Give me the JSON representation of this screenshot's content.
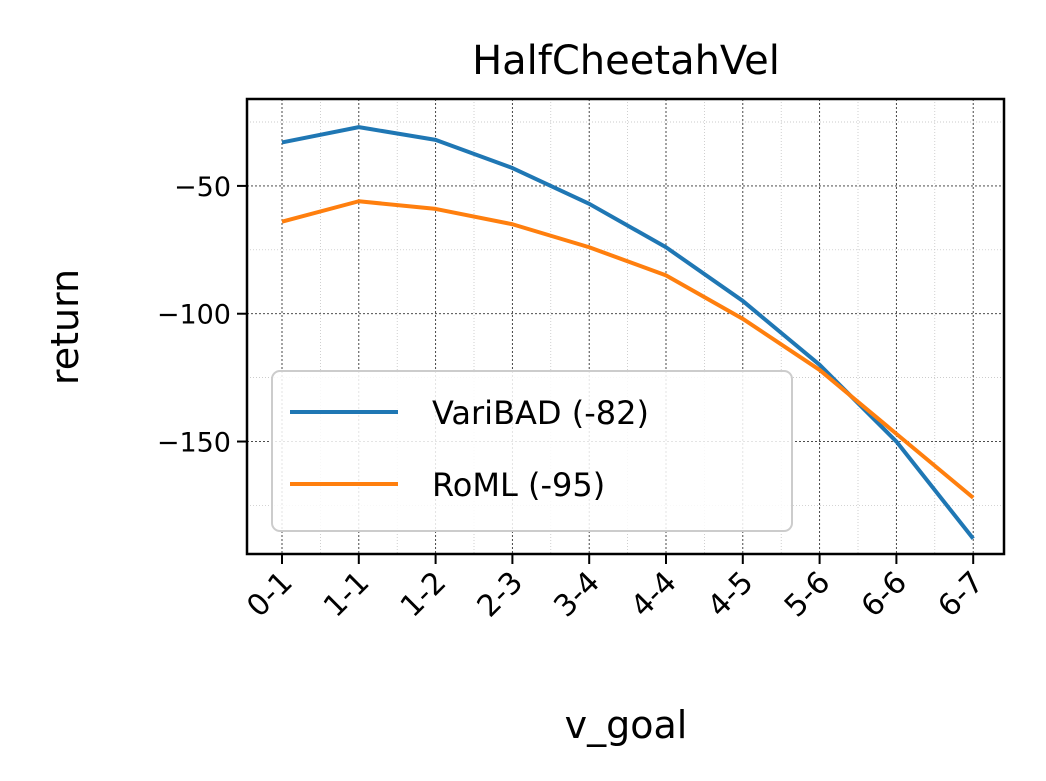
{
  "chart_data": {
    "type": "line",
    "title": "HalfCheetahVel",
    "xlabel": "v_goal",
    "ylabel": "return",
    "categories": [
      "0-1",
      "1-1",
      "1-2",
      "2-3",
      "3-4",
      "4-4",
      "4-5",
      "5-6",
      "6-6",
      "6-7"
    ],
    "ylim": [
      -194,
      -16
    ],
    "yticks": [
      -50,
      -100,
      -150
    ],
    "ytick_labels": [
      "−50",
      "−100",
      "−150"
    ],
    "grid": true,
    "legend_position": "lower-left",
    "series": [
      {
        "name": "VariBAD (-82)",
        "color": "#1f77b4",
        "values": [
          -33,
          -27,
          -32,
          -43,
          -57,
          -74,
          -95,
          -120,
          -150,
          -188
        ]
      },
      {
        "name": "RoML (-95)",
        "color": "#ff7f0e",
        "values": [
          -64,
          -56,
          -59,
          -65,
          -74,
          -85,
          -102,
          -122,
          -147,
          -172
        ]
      }
    ]
  }
}
